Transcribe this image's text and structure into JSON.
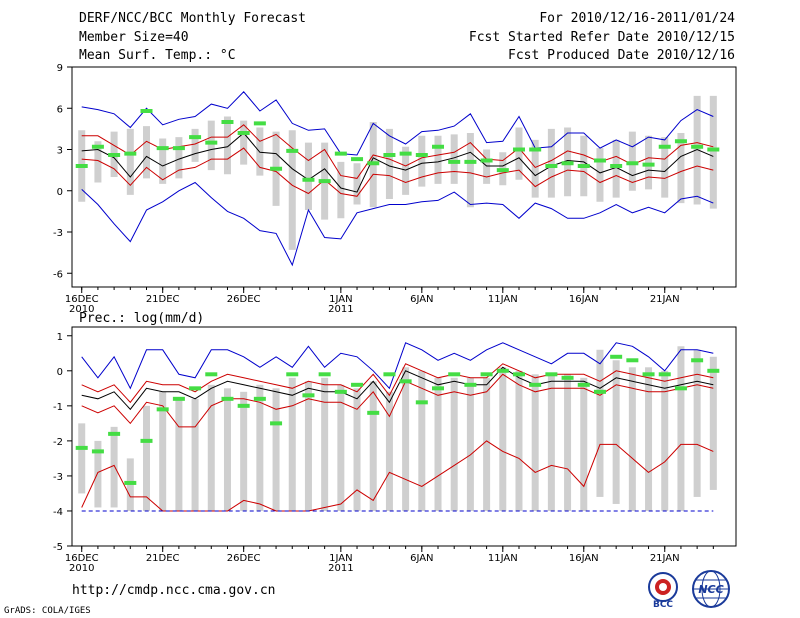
{
  "header": {
    "title": "DERF/NCC/BCC Monthly Forecast",
    "member_size": "Member Size=40",
    "variable": "Mean Surf. Temp.: °C",
    "valid_period": "For 2010/12/16-2011/01/24",
    "start_date": "Fcst Started Refer Date 2010/12/15",
    "produced_date": "Fcst Produced Date 2010/12/16"
  },
  "footer": {
    "url": "http://cmdp.ncc.cma.gov.cn",
    "credit": "GrADS: COLA/IGES",
    "logo_bcc": "BCC",
    "logo_ncc": "NCC"
  },
  "colors": {
    "ensemble_mean": "#000000",
    "inner_spread": "#cc0000",
    "outer_envelope": "#0000cc",
    "observed": "#44dd44",
    "member_range": "#cfcfcf"
  },
  "chart_data": [
    {
      "type": "line",
      "title": "Mean Surf. Temp.: °C",
      "xlabel": "",
      "ylabel": "°C",
      "days": 40,
      "x_ticks": [
        {
          "day": 0,
          "label": "16DEC",
          "sub": "2010"
        },
        {
          "day": 5,
          "label": "21DEC",
          "sub": ""
        },
        {
          "day": 10,
          "label": "26DEC",
          "sub": ""
        },
        {
          "day": 16,
          "label": "1JAN",
          "sub": "2011"
        },
        {
          "day": 21,
          "label": "6JAN",
          "sub": ""
        },
        {
          "day": 26,
          "label": "11JAN",
          "sub": ""
        },
        {
          "day": 31,
          "label": "16JAN",
          "sub": ""
        },
        {
          "day": 36,
          "label": "21JAN",
          "sub": ""
        }
      ],
      "y_ticks": [
        9,
        6,
        3,
        0,
        -3,
        -6
      ],
      "ylim": [
        -7,
        9
      ],
      "series": [
        {
          "name": "max",
          "color": "#0000cc",
          "values": [
            6.1,
            5.9,
            5.6,
            4.6,
            6.0,
            4.8,
            5.2,
            5.4,
            6.3,
            6.0,
            7.2,
            5.8,
            6.6,
            4.9,
            4.4,
            4.5,
            2.7,
            2.6,
            4.9,
            4.0,
            3.4,
            4.3,
            4.4,
            4.7,
            5.6,
            3.5,
            3.6,
            5.4,
            3.1,
            3.2,
            4.2,
            4.2,
            3.1,
            3.7,
            3.2,
            3.9,
            3.7,
            5.1,
            5.9,
            5.4
          ]
        },
        {
          "name": "upper",
          "color": "#cc0000",
          "values": [
            4.0,
            4.0,
            3.3,
            2.6,
            3.6,
            3.0,
            3.2,
            3.4,
            3.9,
            3.9,
            4.8,
            3.6,
            4.1,
            3.1,
            2.2,
            3.0,
            1.1,
            0.9,
            2.6,
            2.3,
            1.8,
            2.4,
            2.6,
            2.8,
            3.5,
            2.3,
            2.2,
            3.1,
            1.7,
            2.2,
            2.9,
            2.6,
            2.1,
            2.5,
            1.9,
            2.4,
            2.3,
            3.3,
            3.5,
            3.2
          ]
        },
        {
          "name": "mean",
          "color": "#000000",
          "values": [
            2.9,
            3.0,
            2.4,
            1.0,
            2.5,
            1.8,
            2.3,
            2.7,
            3.0,
            3.2,
            4.2,
            2.8,
            2.7,
            1.6,
            0.8,
            1.6,
            0.2,
            -0.1,
            2.4,
            1.8,
            1.5,
            2.0,
            2.1,
            2.4,
            2.8,
            1.8,
            1.8,
            2.4,
            1.1,
            1.8,
            2.2,
            2.1,
            1.3,
            1.7,
            1.1,
            1.5,
            1.4,
            2.5,
            3.0,
            2.5
          ]
        },
        {
          "name": "lower",
          "color": "#cc0000",
          "values": [
            2.3,
            2.2,
            1.6,
            0.4,
            1.7,
            0.8,
            1.5,
            1.7,
            2.3,
            2.3,
            3.1,
            1.7,
            1.4,
            0.4,
            -0.2,
            0.8,
            -0.2,
            -0.4,
            1.2,
            1.1,
            0.6,
            1.0,
            1.3,
            1.4,
            1.3,
            1.0,
            1.3,
            1.5,
            0.3,
            1.0,
            1.5,
            1.4,
            0.6,
            1.1,
            0.6,
            1.0,
            0.9,
            1.4,
            1.8,
            1.5
          ]
        },
        {
          "name": "min",
          "color": "#0000cc",
          "values": [
            0.1,
            -1.0,
            -2.4,
            -3.7,
            -1.4,
            -0.8,
            0.0,
            0.6,
            -0.5,
            -1.5,
            -2.0,
            -2.9,
            -3.1,
            -5.4,
            -1.4,
            -3.4,
            -3.5,
            -1.6,
            -1.3,
            -1.0,
            -1.0,
            -0.8,
            -0.7,
            -0.1,
            -1.0,
            -0.9,
            -1.0,
            -2.0,
            -0.9,
            -1.3,
            -2.0,
            -2.0,
            -1.6,
            -1.0,
            -1.6,
            -1.2,
            -1.6,
            -0.6,
            -0.4,
            -0.9
          ]
        }
      ],
      "member_range": {
        "low": [
          -0.8,
          0.6,
          1.0,
          -0.3,
          0.9,
          0.5,
          0.9,
          2.1,
          1.5,
          1.2,
          1.9,
          1.1,
          -1.1,
          -4.3,
          -1.4,
          -2.1,
          -2.0,
          -1.0,
          -1.2,
          -0.6,
          -0.3,
          0.3,
          0.5,
          0.5,
          -1.2,
          0.5,
          0.4,
          0.8,
          -0.5,
          -0.5,
          -0.4,
          -0.4,
          -0.8,
          -0.5,
          0.0,
          0.1,
          -0.5,
          -0.9,
          -1.0,
          -1.3
        ],
        "high": [
          4.4,
          3.6,
          4.3,
          4.5,
          4.7,
          3.8,
          3.9,
          4.5,
          5.1,
          5.4,
          5.1,
          4.6,
          4.3,
          4.4,
          3.5,
          3.5,
          2.1,
          2.0,
          5.0,
          4.5,
          3.2,
          4.0,
          4.0,
          4.1,
          4.2,
          3.0,
          2.8,
          4.6,
          3.7,
          4.5,
          4.6,
          4.0,
          3.1,
          3.7,
          4.3,
          4.0,
          3.9,
          4.2,
          6.9,
          6.9
        ]
      },
      "observed": [
        1.8,
        3.2,
        2.6,
        2.7,
        5.8,
        3.1,
        3.1,
        3.9,
        3.5,
        5.0,
        4.2,
        4.9,
        1.6,
        2.9,
        0.8,
        0.7,
        2.7,
        2.3,
        2.0,
        2.6,
        2.7,
        2.6,
        3.2,
        2.1,
        2.1,
        2.2,
        1.5,
        3.0,
        3.0,
        1.8,
        2.0,
        1.8,
        2.2,
        1.8,
        2.0,
        1.9,
        3.2,
        3.6,
        3.2,
        3.0
      ]
    },
    {
      "type": "line",
      "title": "Prec.: log(mm/d)",
      "xlabel": "",
      "ylabel": "log(mm/d)",
      "days": 40,
      "x_ticks": [
        {
          "day": 0,
          "label": "16DEC",
          "sub": "2010"
        },
        {
          "day": 5,
          "label": "21DEC",
          "sub": ""
        },
        {
          "day": 10,
          "label": "26DEC",
          "sub": ""
        },
        {
          "day": 16,
          "label": "1JAN",
          "sub": "2011"
        },
        {
          "day": 21,
          "label": "6JAN",
          "sub": ""
        },
        {
          "day": 26,
          "label": "11JAN",
          "sub": ""
        },
        {
          "day": 31,
          "label": "16JAN",
          "sub": ""
        },
        {
          "day": 36,
          "label": "21JAN",
          "sub": ""
        }
      ],
      "y_ticks": [
        1,
        0,
        -1,
        -2,
        -3,
        -4,
        -5
      ],
      "ylim": [
        -5,
        1.25
      ],
      "series": [
        {
          "name": "max",
          "color": "#0000cc",
          "values": [
            0.4,
            -0.2,
            0.4,
            -0.5,
            0.6,
            0.6,
            -0.1,
            -0.2,
            0.6,
            0.6,
            0.4,
            0.1,
            0.4,
            0.1,
            0.7,
            0.1,
            0.5,
            0.4,
            0.0,
            -0.5,
            0.8,
            0.6,
            0.3,
            0.5,
            0.3,
            0.6,
            0.8,
            0.6,
            0.4,
            0.2,
            0.5,
            0.5,
            0.2,
            0.8,
            0.7,
            0.4,
            0.0,
            0.6,
            0.6,
            0.5
          ]
        },
        {
          "name": "upper",
          "color": "#cc0000",
          "values": [
            -0.4,
            -0.6,
            -0.4,
            -0.9,
            -0.3,
            -0.4,
            -0.4,
            -0.6,
            -0.3,
            -0.1,
            -0.2,
            -0.3,
            -0.4,
            -0.5,
            -0.3,
            -0.4,
            -0.4,
            -0.6,
            -0.1,
            -0.7,
            0.2,
            0.0,
            -0.2,
            -0.1,
            -0.2,
            -0.2,
            0.2,
            0.0,
            -0.2,
            -0.1,
            -0.1,
            -0.1,
            -0.3,
            0.0,
            -0.1,
            -0.2,
            -0.3,
            -0.2,
            -0.1,
            -0.2
          ]
        },
        {
          "name": "mean",
          "color": "#000000",
          "values": [
            -0.7,
            -0.8,
            -0.6,
            -1.1,
            -0.5,
            -0.6,
            -0.6,
            -0.8,
            -0.5,
            -0.3,
            -0.4,
            -0.5,
            -0.6,
            -0.7,
            -0.5,
            -0.6,
            -0.6,
            -0.8,
            -0.3,
            -0.9,
            0.0,
            -0.2,
            -0.4,
            -0.3,
            -0.4,
            -0.4,
            0.1,
            -0.2,
            -0.4,
            -0.3,
            -0.3,
            -0.3,
            -0.5,
            -0.2,
            -0.3,
            -0.4,
            -0.5,
            -0.4,
            -0.3,
            -0.4
          ]
        },
        {
          "name": "lower",
          "color": "#cc0000",
          "values": [
            -1.0,
            -1.2,
            -1.0,
            -1.5,
            -0.9,
            -1.0,
            -1.6,
            -1.6,
            -1.0,
            -0.8,
            -0.8,
            -0.9,
            -1.1,
            -1.0,
            -0.8,
            -0.9,
            -0.9,
            -1.1,
            -0.6,
            -1.3,
            -0.3,
            -0.5,
            -0.7,
            -0.6,
            -0.7,
            -0.6,
            -0.1,
            -0.4,
            -0.6,
            -0.5,
            -0.5,
            -0.5,
            -0.7,
            -0.4,
            -0.5,
            -0.6,
            -0.6,
            -0.5,
            -0.4,
            -0.5
          ]
        },
        {
          "name": "min",
          "color": "#cc0000",
          "values": [
            -3.9,
            -2.9,
            -2.7,
            -3.6,
            -3.6,
            -4.0,
            -4.0,
            -4.0,
            -4.0,
            -4.0,
            -3.7,
            -3.8,
            -4.0,
            -4.0,
            -4.0,
            -3.9,
            -3.8,
            -3.4,
            -3.7,
            -2.9,
            -3.1,
            -3.3,
            -3.0,
            -2.7,
            -2.4,
            -2.0,
            -2.3,
            -2.5,
            -2.9,
            -2.7,
            -2.8,
            -3.3,
            -2.1,
            -2.1,
            -2.5,
            -2.9,
            -2.6,
            -2.1,
            -2.1,
            -2.3
          ]
        },
        {
          "name": "floor",
          "color": "#0000cc",
          "values": [
            -4,
            -4,
            -4,
            -4,
            -4,
            -4,
            -4,
            -4,
            -4,
            -4,
            -4,
            -4,
            -4,
            -4,
            -4,
            -4,
            -4,
            -4,
            -4,
            -4,
            -4,
            -4,
            -4,
            -4,
            -4,
            -4,
            -4,
            -4,
            -4,
            -4,
            -4,
            -4,
            -4,
            -4,
            -4,
            -4,
            -4,
            -4,
            -4,
            -4
          ]
        }
      ],
      "member_range": {
        "low": [
          -3.5,
          -3.9,
          -3.9,
          -4.0,
          -4.0,
          -4.0,
          -4.0,
          -4.0,
          -4.0,
          -4.0,
          -4.0,
          -4.0,
          -4.0,
          -4.0,
          -4.0,
          -4.0,
          -4.0,
          -4.0,
          -4.0,
          -4.0,
          -4.0,
          -4.0,
          -4.0,
          -4.0,
          -4.0,
          -4.0,
          -4.0,
          -4.0,
          -4.0,
          -4.0,
          -4.0,
          -4.0,
          -3.6,
          -3.8,
          -4.0,
          -4.0,
          -4.0,
          -4.0,
          -3.6,
          -3.4
        ],
        "high": [
          -1.5,
          -2.0,
          -1.6,
          -2.5,
          -1.0,
          -0.6,
          -0.8,
          -0.8,
          -0.4,
          -0.5,
          -0.6,
          -0.4,
          -0.5,
          -0.2,
          -0.3,
          -0.2,
          -0.4,
          -0.5,
          -0.3,
          -0.6,
          0.1,
          0.0,
          -0.2,
          -0.2,
          -0.2,
          -0.2,
          0.1,
          0.0,
          -0.1,
          -0.1,
          -0.1,
          -0.2,
          0.6,
          0.3,
          0.1,
          0.1,
          0.0,
          0.7,
          0.6,
          0.4
        ]
      },
      "observed": [
        -2.2,
        -2.3,
        -1.8,
        -3.2,
        -2.0,
        -1.1,
        -0.8,
        -0.5,
        -0.1,
        -0.8,
        -1.0,
        -0.8,
        -1.5,
        -0.1,
        -0.7,
        -0.1,
        -0.6,
        -0.4,
        -1.2,
        -0.1,
        -0.3,
        -0.9,
        -0.5,
        -0.1,
        -0.4,
        -0.1,
        0.0,
        -0.1,
        -0.4,
        -0.1,
        -0.2,
        -0.4,
        -0.6,
        0.4,
        0.3,
        -0.1,
        -0.1,
        -0.5,
        0.3,
        0.0
      ]
    }
  ]
}
